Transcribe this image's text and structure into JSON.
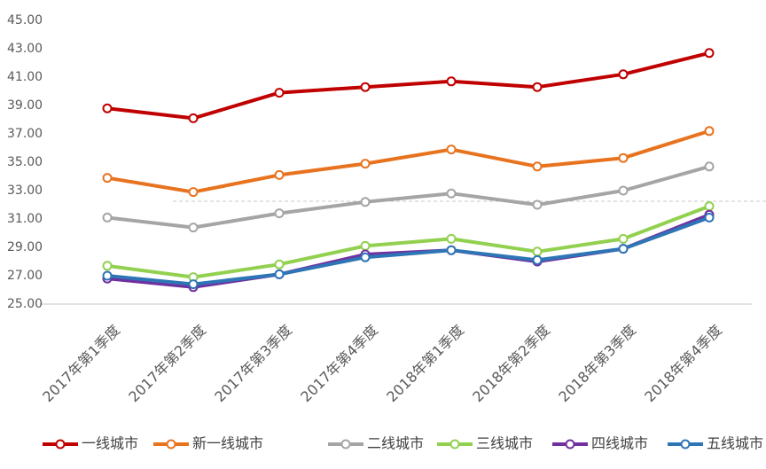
{
  "chart_data": {
    "type": "line",
    "categories": [
      "2017年第1季度",
      "2017年第2季度",
      "2017年第3季度",
      "2017年第4季度",
      "2018年第1季度",
      "2018年第2季度",
      "2018年第3季度",
      "2018年第4季度"
    ],
    "series": [
      {
        "name": "一线城市",
        "color": "#c00000",
        "values": [
          38.8,
          38.1,
          39.9,
          40.3,
          40.7,
          40.3,
          41.2,
          42.7
        ]
      },
      {
        "name": "新一线城市",
        "color": "#e8731f",
        "values": [
          33.9,
          32.9,
          34.1,
          34.9,
          35.9,
          34.7,
          35.3,
          37.2
        ]
      },
      {
        "name": "二线城市",
        "color": "#a5a5a5",
        "values": [
          31.1,
          30.4,
          31.4,
          32.2,
          32.8,
          32.0,
          33.0,
          34.7
        ]
      },
      {
        "name": "三线城市",
        "color": "#92d050",
        "values": [
          27.7,
          26.9,
          27.8,
          29.1,
          29.6,
          28.7,
          29.6,
          31.9
        ]
      },
      {
        "name": "四线城市",
        "color": "#7030a0",
        "values": [
          26.8,
          26.2,
          27.1,
          28.5,
          28.8,
          28.0,
          28.9,
          31.3
        ]
      },
      {
        "name": "五线城市",
        "color": "#2e75b6",
        "values": [
          27.0,
          26.4,
          27.1,
          28.3,
          28.8,
          28.1,
          28.9,
          31.1
        ]
      }
    ],
    "ylim": [
      25,
      45
    ],
    "yticks": [
      {
        "value": 25,
        "label": "25.00"
      },
      {
        "value": 27,
        "label": "27.00"
      },
      {
        "value": 29,
        "label": "29.00"
      },
      {
        "value": 31,
        "label": "31.00"
      },
      {
        "value": 33,
        "label": "33.00"
      },
      {
        "value": 35,
        "label": "35.00"
      },
      {
        "value": 37,
        "label": "37.00"
      },
      {
        "value": 39,
        "label": "39.00"
      },
      {
        "value": 41,
        "label": "41.00"
      },
      {
        "value": 43,
        "label": "43.00"
      },
      {
        "value": 45,
        "label": "45.00"
      }
    ],
    "legend": "bottom"
  }
}
